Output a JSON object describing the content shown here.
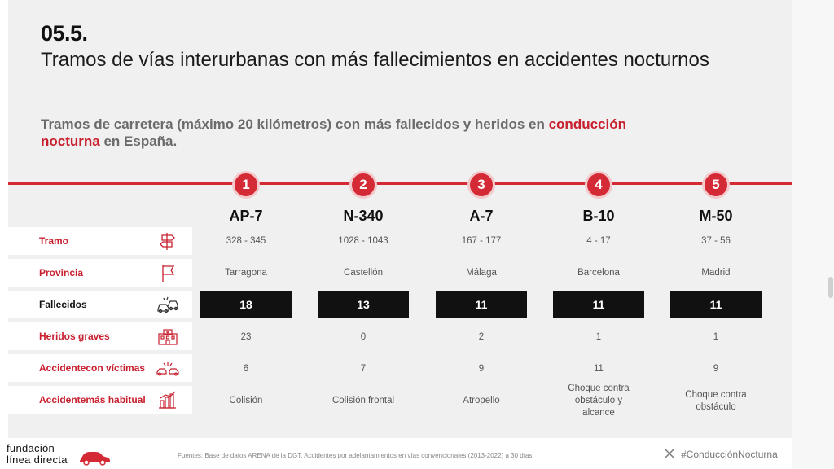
{
  "section_number": "05.5.",
  "title": "Tramos de vías interurbanas con más fallecimientos en accidentes nocturnos",
  "subtitle": {
    "part1": "Tramos de carretera (máximo 20 kilómetros) con más fallecidos y heridos en ",
    "highlight1": "conducción",
    "highlight2": "nocturna",
    "part2": " en España."
  },
  "ranks": [
    "1",
    "2",
    "3",
    "4",
    "5"
  ],
  "roads": [
    "AP-7",
    "N-340",
    "A-7",
    "B-10",
    "M-50"
  ],
  "rows": {
    "tramo": {
      "label": "Tramo",
      "icon": "signpost-icon",
      "values": [
        "328 - 345",
        "1028 - 1043",
        "167 - 177",
        "4 - 17",
        "37 - 56"
      ]
    },
    "provincia": {
      "label": "Provincia",
      "icon": "flag-icon",
      "values": [
        "Tarragona",
        "Castellón",
        "Málaga",
        "Barcelona",
        "Madrid"
      ]
    },
    "fallecidos": {
      "label": "Fallecidos",
      "icon": "crashed-cars-icon",
      "values": [
        "18",
        "13",
        "11",
        "11",
        "11"
      ]
    },
    "heridos": {
      "label": "Heridos graves",
      "icon": "hospital-icon",
      "values": [
        "23",
        "0",
        "2",
        "1",
        "1"
      ]
    },
    "accidente_victimas": {
      "label_line1": "Accidente",
      "label_line2": "con víctimas",
      "icon": "collision-icon",
      "values": [
        "6",
        "7",
        "9",
        "11",
        "9"
      ]
    },
    "accidente_habitual": {
      "label_line1": "Accidente",
      "label_line2": "más habitual",
      "icon": "bar-chart-icon",
      "values": [
        "Colisión",
        "Colisión frontal",
        "Atropello",
        "Choque contra obstáculo y alcance",
        "Choque contra obstáculo"
      ]
    }
  },
  "footer": {
    "logo_line1": "fundación",
    "logo_line2": "línea directa",
    "sources": "Fuentes: Base de datos ARENA de la DGT. Accidentes por adelantamientos en vías convencionales (2013-2022) a 30 días",
    "hashtag": "#ConducciónNocturna"
  },
  "colors": {
    "accent": "#d42a35",
    "highlight_text": "#c8202f",
    "dark_box": "#111111"
  }
}
